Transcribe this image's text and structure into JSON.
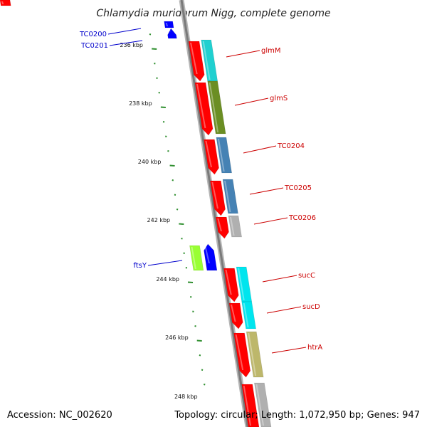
{
  "title": "Chlamydia muridarum Nigg, complete genome",
  "footer": {
    "accession": "Accession: NC_002620",
    "summary": "Topology: circular; Length: 1,072,950 bp; Genes: 947"
  },
  "colors": {
    "forward_strand": "#ff0000",
    "backbone": "#8c8c8c",
    "ticks": "#2f8f2f",
    "left_label": "#0000cc",
    "right_label": "#cc0000"
  },
  "scale_labels": [
    "236 kbp",
    "238 kbp",
    "240 kbp",
    "242 kbp",
    "244 kbp",
    "246 kbp",
    "248 kbp"
  ],
  "genes_left": [
    {
      "label": "TC0200",
      "color": "#0000ff"
    },
    {
      "label": "TC0201",
      "color": "#0000ff"
    },
    {
      "label": "ftsY",
      "color": "#0000ff"
    }
  ],
  "genes_left_partner": {
    "color": "#99ff33"
  },
  "genes_right": [
    {
      "label": "glmM",
      "color": "#20d0d0"
    },
    {
      "label": "glmS",
      "color": "#6b8e23"
    },
    {
      "label": "TC0204",
      "color": "#4682b4"
    },
    {
      "label": "TC0205",
      "color": "#4682b4"
    },
    {
      "label": "TC0206",
      "color": "#b0b0b0"
    },
    {
      "label": "sucC",
      "color": "#00e5ee"
    },
    {
      "label": "sucD",
      "color": "#00e5ee"
    },
    {
      "label": "htrA",
      "color": "#bdb76b"
    }
  ]
}
